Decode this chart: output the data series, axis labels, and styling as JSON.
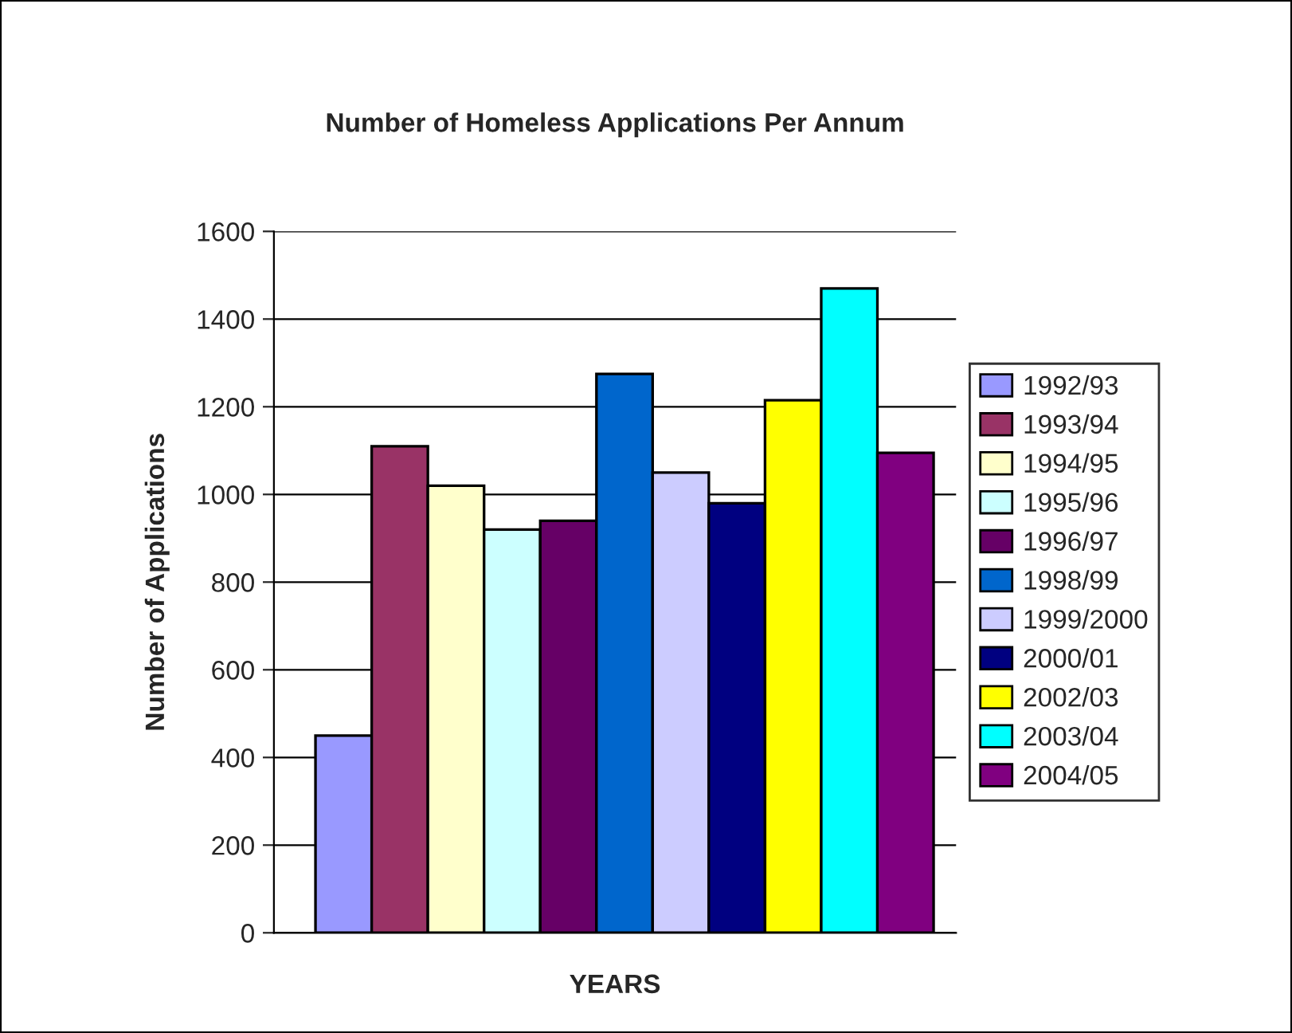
{
  "chart_data": {
    "type": "bar",
    "title": "Number of Homeless Applications Per Annum",
    "xlabel": "YEARS",
    "ylabel": "Number of Applications",
    "categories": [
      null
    ],
    "series": [
      {
        "name": "1992/93",
        "color": "#9999ff",
        "values": [
          450
        ]
      },
      {
        "name": "1993/94",
        "color": "#993366",
        "values": [
          1110
        ]
      },
      {
        "name": "1994/95",
        "color": "#ffffcc",
        "values": [
          1020
        ]
      },
      {
        "name": "1995/96",
        "color": "#ccffff",
        "values": [
          920
        ]
      },
      {
        "name": "1996/97",
        "color": "#660066",
        "values": [
          940
        ]
      },
      {
        "name": "1998/99",
        "color": "#0066cc",
        "values": [
          1275
        ]
      },
      {
        "name": "1999/2000",
        "color": "#ccccff",
        "values": [
          1050
        ]
      },
      {
        "name": "2000/01",
        "color": "#000080",
        "values": [
          980
        ]
      },
      {
        "name": "2002/03",
        "color": "#ffff00",
        "values": [
          1215
        ]
      },
      {
        "name": "2003/04",
        "color": "#00ffff",
        "values": [
          1470
        ]
      },
      {
        "name": "2004/05",
        "color": "#800080",
        "values": [
          1095
        ]
      }
    ],
    "ylim": [
      0,
      1600
    ],
    "yticks": [
      0,
      200,
      400,
      600,
      800,
      1000,
      1200,
      1400,
      1600
    ],
    "grid": "y",
    "legend": "right"
  }
}
